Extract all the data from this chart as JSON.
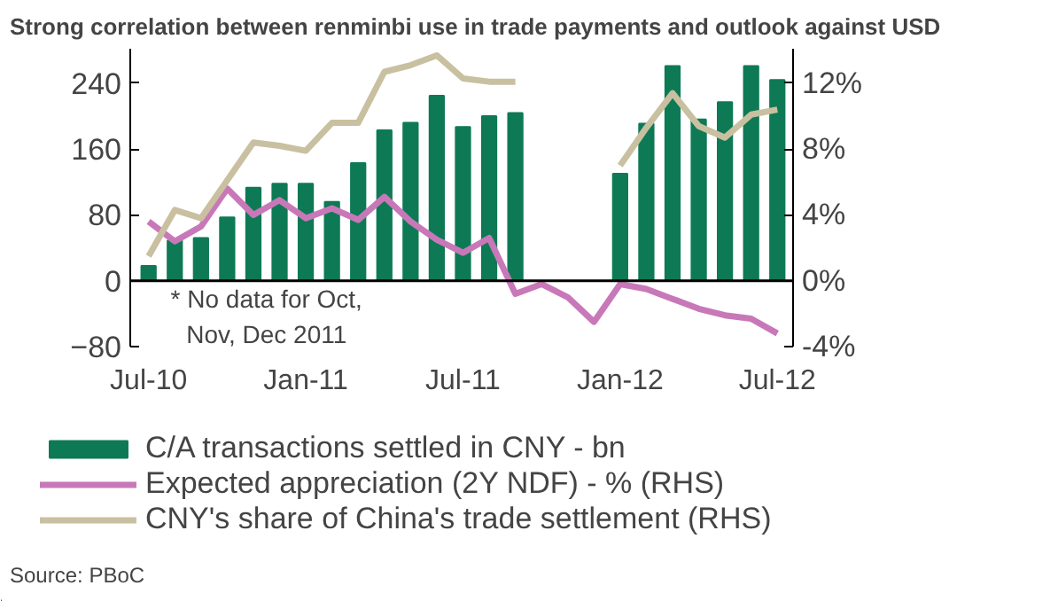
{
  "chart_data": {
    "type": "bar",
    "title": "Strong correlation between renminbi use in trade payments and outlook against USD",
    "categories": [
      "Jul-10",
      null,
      null,
      null,
      null,
      null,
      "Jan-11",
      null,
      null,
      null,
      null,
      null,
      "Jul-11",
      null,
      null,
      null,
      null,
      null,
      "Jan-12",
      null,
      null,
      null,
      null,
      null,
      "Jul-12"
    ],
    "series": [
      {
        "name": "C/A transactions settled in CNY - bn",
        "color": "#0e7a55",
        "values": [
          18,
          49,
          52,
          77,
          113,
          118,
          118,
          96,
          143,
          183,
          192,
          225,
          187,
          200,
          204,
          null,
          null,
          null,
          130,
          191,
          261,
          196,
          217,
          261,
          244
        ]
      },
      {
        "name": "Expected appreciation (2Y NDF) - % (RHS)",
        "type": "line",
        "axis": "y2",
        "color": "#c878b8",
        "values": [
          3.6,
          2.4,
          3.3,
          5.6,
          4.0,
          4.9,
          3.8,
          4.4,
          3.7,
          5.1,
          3.6,
          2.5,
          1.7,
          2.6,
          -0.8,
          -0.2,
          -1.0,
          -2.5,
          -0.2,
          -0.5,
          -1.1,
          -1.7,
          -2.1,
          -2.3,
          -3.2
        ]
      },
      {
        "name": "CNY's share of China's trade settlement (RHS)",
        "type": "line",
        "axis": "y2",
        "color": "#c8c0a0",
        "values": [
          1.5,
          4.3,
          3.8,
          6.1,
          8.4,
          8.2,
          7.9,
          9.6,
          9.6,
          12.7,
          13.1,
          13.7,
          12.3,
          12.1,
          12.1,
          null,
          null,
          null,
          7.0,
          9.3,
          11.4,
          9.4,
          8.7,
          10.1,
          10.4
        ]
      }
    ],
    "ylim": [
      -80,
      282
    ],
    "yticks": [
      -80,
      0,
      80,
      160,
      240
    ],
    "y2lim": [
      -4,
      14.1
    ],
    "y2ticks": [
      {
        "value": -4,
        "label": "-4%"
      },
      {
        "value": 0,
        "label": "0%"
      },
      {
        "value": 4,
        "label": "4%"
      },
      {
        "value": 8,
        "label": "8%"
      },
      {
        "value": 12,
        "label": "12%"
      }
    ],
    "ref_lines": [
      {
        "axis": "y",
        "value": 0,
        "color": "#000000"
      }
    ],
    "annotations": [
      "* No data for Oct,\nNov, Dec 2011",
      "Source: PBoC"
    ],
    "legend": "bottom",
    "grid": false
  }
}
